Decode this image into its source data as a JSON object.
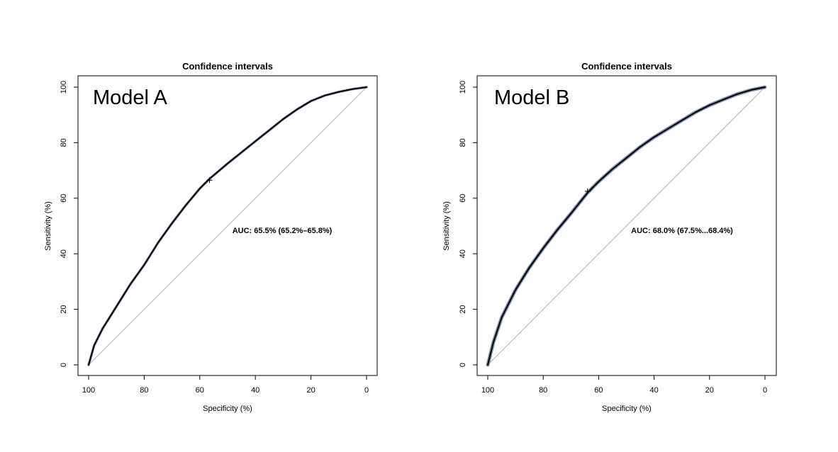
{
  "chart_data": [
    {
      "type": "line",
      "title": "Confidence intervals",
      "model_label": "Model A",
      "auc_label": "AUC: 65.5% (65.2%–65.8%)",
      "xlabel": "Specificity (%)",
      "ylabel": "Sensitivity (%)",
      "xlim": [
        100,
        0
      ],
      "ylim": [
        0,
        100
      ],
      "x_ticks": [
        "100",
        "80",
        "60",
        "40",
        "20",
        "0"
      ],
      "y_ticks": [
        "0",
        "20",
        "40",
        "60",
        "80",
        "100"
      ],
      "reference_line": true,
      "band_color": "#7f8fb0",
      "curve_color": "#000000",
      "series": [
        {
          "x": [
            100,
            98,
            95,
            90,
            85,
            80,
            75,
            70,
            65,
            60,
            56.5,
            50,
            45,
            40,
            35,
            30,
            25,
            20,
            15,
            10,
            5,
            0
          ],
          "y": [
            0,
            7,
            13,
            21,
            29,
            36,
            44,
            51,
            57.5,
            63.5,
            67,
            72.5,
            76.5,
            80.5,
            84.5,
            88.5,
            92,
            95,
            97,
            98.3,
            99.3,
            100
          ]
        }
      ],
      "threshold_point": {
        "x": 56.5,
        "y": 66.5
      }
    },
    {
      "type": "line",
      "title": "Confidence intervals",
      "model_label": "Model B",
      "auc_label": "AUC: 68.0% (67.5%...68.4%)",
      "xlabel": "Specificity (%)",
      "ylabel": "Sensitivity (%)",
      "xlim": [
        100,
        0
      ],
      "ylim": [
        0,
        100
      ],
      "x_ticks": [
        "100",
        "80",
        "60",
        "40",
        "20",
        "0"
      ],
      "y_ticks": [
        "0",
        "20",
        "40",
        "60",
        "80",
        "100"
      ],
      "reference_line": true,
      "band_color": "#7f8fb0",
      "curve_color": "#000000",
      "series": [
        {
          "x": [
            100,
            98,
            95,
            90,
            85,
            80,
            75,
            70,
            64,
            60,
            55,
            50,
            45,
            40,
            35,
            30,
            25,
            20,
            15,
            10,
            5,
            0
          ],
          "y": [
            0,
            8,
            17,
            27,
            35,
            42,
            48.5,
            54.5,
            62,
            66,
            70.5,
            74.5,
            78.5,
            82,
            85,
            88,
            91,
            93.5,
            95.5,
            97.5,
            99,
            100
          ]
        }
      ],
      "threshold_point": {
        "x": 64,
        "y": 62.5
      }
    }
  ]
}
